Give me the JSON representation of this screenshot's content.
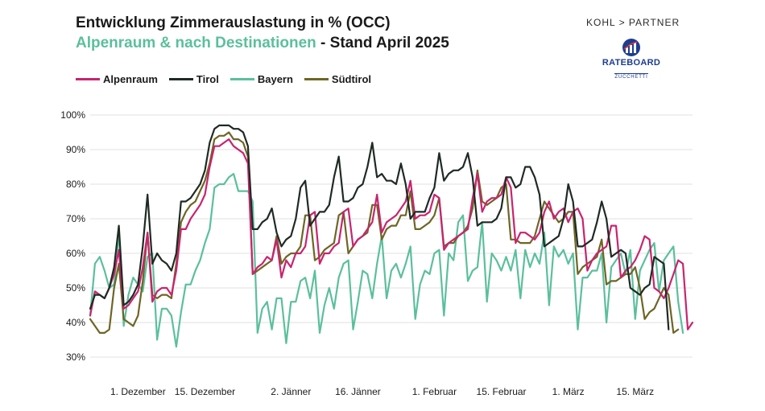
{
  "header": {
    "title": "Entwicklung Zimmerauslastung in % (OCC)",
    "subtitle_green": "Alpenraum & nach Destinationen",
    "subtitle_dark": " - Stand April 2025",
    "brand": "KOHL > PARTNER",
    "logo_name": "RATEBOARD",
    "logo_sub": "ZUCCHETTI"
  },
  "colors": {
    "Alpenraum": "#c8246f",
    "Tirol": "#1f2a24",
    "Bayern": "#5bbf9d",
    "Südtirol": "#6e6525",
    "grid": "#e2e2e2"
  },
  "chart_data": {
    "type": "line",
    "ylim": [
      30,
      100
    ],
    "yticks": [
      "30%",
      "40%",
      "50%",
      "60%",
      "70%",
      "80%",
      "90%",
      "100%"
    ],
    "ytick_values": [
      30,
      40,
      50,
      60,
      70,
      80,
      90,
      100
    ],
    "xticks": [
      "1. Dezember",
      "15. Dezember",
      "2. Jänner",
      "16. Jänner",
      "1. Februar",
      "15. Februar",
      "1. März",
      "15. März"
    ],
    "xtick_index": [
      10,
      24,
      42,
      56,
      72,
      86,
      100,
      114
    ],
    "grid": true,
    "legend_position": "top-left",
    "series": [
      {
        "name": "Alpenraum",
        "values": [
          42,
          49,
          48,
          47,
          50,
          54,
          61,
          44,
          45,
          47,
          49,
          56,
          66,
          46,
          49,
          50,
          50,
          48,
          55,
          67,
          67,
          70,
          72,
          74,
          77,
          85,
          91,
          91,
          92,
          93,
          91,
          90,
          89,
          86,
          54,
          56,
          57,
          59,
          58,
          64,
          53,
          58,
          56,
          60,
          60,
          62,
          71,
          72,
          57,
          60,
          60,
          62,
          63,
          72,
          73,
          62,
          64,
          65,
          67,
          69,
          77,
          66,
          69,
          70,
          71,
          73,
          75,
          81,
          70,
          71,
          71,
          72,
          77,
          76,
          61,
          63,
          64,
          65,
          66,
          67,
          76,
          83,
          72,
          75,
          76,
          76,
          77,
          82,
          79,
          63,
          66,
          66,
          65,
          64,
          66,
          72,
          75,
          70,
          72,
          73,
          69,
          72,
          73,
          70,
          55,
          58,
          60,
          61,
          62,
          68,
          68,
          53,
          55,
          56,
          58,
          61,
          65,
          64,
          50,
          49,
          47,
          50,
          54,
          58,
          57,
          38,
          40
        ]
      },
      {
        "name": "Tirol",
        "values": [
          44,
          48,
          48,
          47,
          50,
          56,
          68,
          45,
          46,
          48,
          51,
          62,
          77,
          57,
          60,
          58,
          57,
          55,
          60,
          75,
          75,
          76,
          78,
          80,
          84,
          92,
          96,
          97,
          97,
          97,
          96,
          96,
          95,
          91,
          67,
          67,
          69,
          70,
          73,
          66,
          62,
          64,
          65,
          70,
          79,
          81,
          68,
          70,
          72,
          72,
          74,
          82,
          88,
          75,
          75,
          76,
          79,
          80,
          85,
          92,
          82,
          83,
          81,
          81,
          80,
          86,
          80,
          70,
          72,
          72,
          72,
          76,
          79,
          89,
          81,
          83,
          84,
          84,
          85,
          89,
          82,
          68,
          69,
          69,
          69,
          70,
          73,
          82,
          82,
          79,
          80,
          85,
          85,
          82,
          77,
          62,
          63,
          64,
          65,
          70,
          80,
          75,
          62,
          62,
          63,
          64,
          69,
          75,
          70,
          59,
          60,
          61,
          60,
          50,
          49,
          48,
          50,
          51,
          59,
          58,
          57,
          38
        ]
      },
      {
        "name": "Bayern",
        "values": [
          42,
          57,
          59,
          55,
          50,
          51,
          66,
          39,
          48,
          53,
          51,
          49,
          59,
          60,
          35,
          44,
          44,
          42,
          33,
          43,
          51,
          51,
          55,
          58,
          63,
          67,
          79,
          80,
          80,
          82,
          83,
          78,
          78,
          78,
          75,
          37,
          44,
          46,
          38,
          47,
          47,
          34,
          46,
          46,
          52,
          53,
          47,
          55,
          37,
          45,
          50,
          44,
          53,
          57,
          58,
          38,
          46,
          55,
          54,
          47,
          57,
          65,
          47,
          55,
          57,
          53,
          57,
          62,
          41,
          51,
          55,
          54,
          60,
          61,
          42,
          60,
          58,
          69,
          71,
          52,
          55,
          56,
          69,
          46,
          60,
          58,
          55,
          59,
          55,
          61,
          47,
          61,
          56,
          60,
          57,
          66,
          45,
          62,
          59,
          61,
          57,
          60,
          38,
          53,
          53,
          55,
          55,
          60,
          40,
          56,
          58,
          60,
          54,
          61,
          41,
          55,
          58,
          61,
          63,
          49,
          58,
          60,
          62,
          46,
          37
        ]
      },
      {
        "name": "Südtirol",
        "values": [
          41,
          39,
          37,
          37,
          38,
          50,
          57,
          41,
          40,
          39,
          42,
          52,
          66,
          48,
          47,
          48,
          48,
          47,
          57,
          69,
          72,
          74,
          75,
          78,
          81,
          86,
          93,
          94,
          94,
          95,
          93,
          93,
          92,
          88,
          54,
          55,
          56,
          57,
          58,
          65,
          57,
          59,
          60,
          60,
          62,
          71,
          71,
          58,
          59,
          61,
          62,
          63,
          71,
          72,
          60,
          62,
          64,
          65,
          66,
          74,
          74,
          64,
          67,
          68,
          68,
          71,
          71,
          78,
          67,
          67,
          68,
          69,
          71,
          76,
          62,
          63,
          63,
          65,
          66,
          68,
          73,
          84,
          75,
          74,
          75,
          76,
          79,
          80,
          64,
          64,
          63,
          63,
          63,
          65,
          70,
          75,
          73,
          71,
          69,
          70,
          72,
          72,
          54,
          56,
          57,
          58,
          59,
          64,
          51,
          52,
          52,
          53,
          54,
          54,
          56,
          50,
          41,
          43,
          44,
          47,
          50,
          48,
          37,
          38
        ]
      }
    ]
  }
}
